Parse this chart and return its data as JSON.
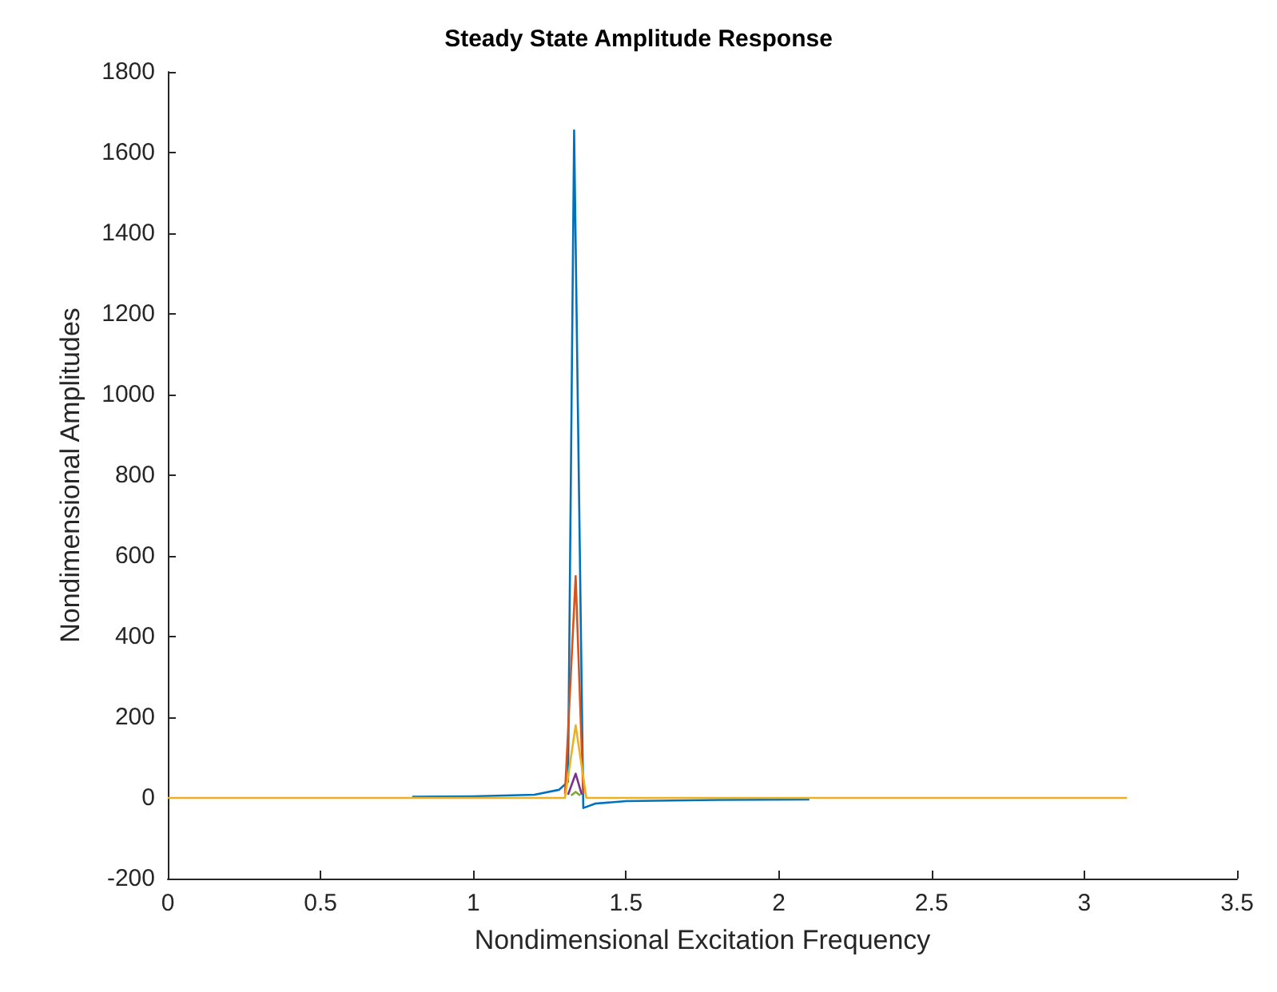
{
  "chart_data": {
    "type": "line",
    "title": "Steady State Amplitude Response",
    "xlabel": "Nondimensional Excitation Frequency",
    "ylabel": "Nondimensional Amplitudes",
    "series": [
      {
        "color": "#0072bd",
        "x": [
          0.8,
          1,
          1.2,
          1.28,
          1.31,
          1.33,
          1.36,
          1.4,
          1.5,
          1.8,
          2.1
        ],
        "values": [
          3,
          4,
          8,
          20,
          40,
          1655,
          -25,
          -14,
          -8,
          -5,
          -4
        ]
      },
      {
        "color": "#d95319",
        "x": [
          1.3,
          1.335,
          1.36
        ],
        "values": [
          10,
          550,
          10
        ]
      },
      {
        "color": "#7e2f8e",
        "x": [
          1.31,
          1.335,
          1.355
        ],
        "values": [
          8,
          60,
          8
        ]
      },
      {
        "color": "#77ac30",
        "x": [
          1.32,
          1.335,
          1.35
        ],
        "values": [
          6,
          15,
          6
        ]
      },
      {
        "color": "#edb120",
        "x": [
          0,
          1.3,
          1.335,
          1.37,
          3.14
        ],
        "values": [
          0,
          0,
          180,
          0,
          0
        ]
      }
    ],
    "xlim": [
      0,
      3.5
    ],
    "xticks": [
      0,
      0.5,
      1,
      1.5,
      2,
      2.5,
      3,
      3.5
    ],
    "ylim": [
      -200,
      1800
    ],
    "yticks": [
      -200,
      0,
      200,
      400,
      600,
      800,
      1000,
      1200,
      1400,
      1600,
      1800
    ],
    "grid": false,
    "marker": "none",
    "line_style": "solid"
  }
}
